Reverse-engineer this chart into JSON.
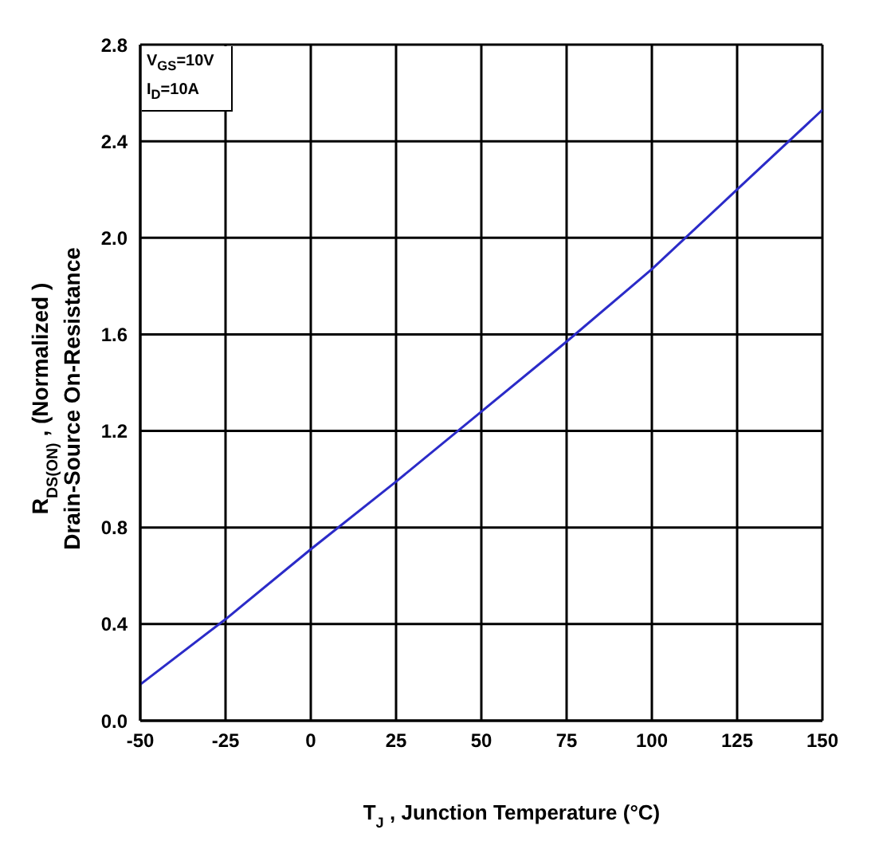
{
  "chart_data": {
    "type": "line",
    "xlabel": "T$_{J}$, Junction Temperature (°C)",
    "ylabel": "R$_{DS(ON)}$, (Normalized )\nDrain-Source On-Resistance",
    "annotations": [
      "V$_{GS}$=10V",
      "I$_{D}$=10A"
    ],
    "x": [
      -50,
      -25,
      0,
      25,
      50,
      75,
      100,
      125,
      150
    ],
    "series": [
      {
        "color": "#2b2bc8",
        "values": [
          0.15,
          0.42,
          0.71,
          0.99,
          1.28,
          1.57,
          1.87,
          2.2,
          2.53
        ]
      }
    ],
    "xlim": [
      -50,
      150
    ],
    "xticks": [
      -50,
      -25,
      0,
      25,
      50,
      75,
      100,
      125,
      150
    ],
    "ylim": [
      0,
      2.8
    ],
    "yticks": [
      {
        "value": 0,
        "label": "0.0"
      },
      0.4,
      0.8,
      1.2,
      1.6,
      {
        "value": 2,
        "label": "2.0"
      },
      2.4,
      2.8
    ],
    "grid": true,
    "marker": "none",
    "line_style": "solid"
  }
}
